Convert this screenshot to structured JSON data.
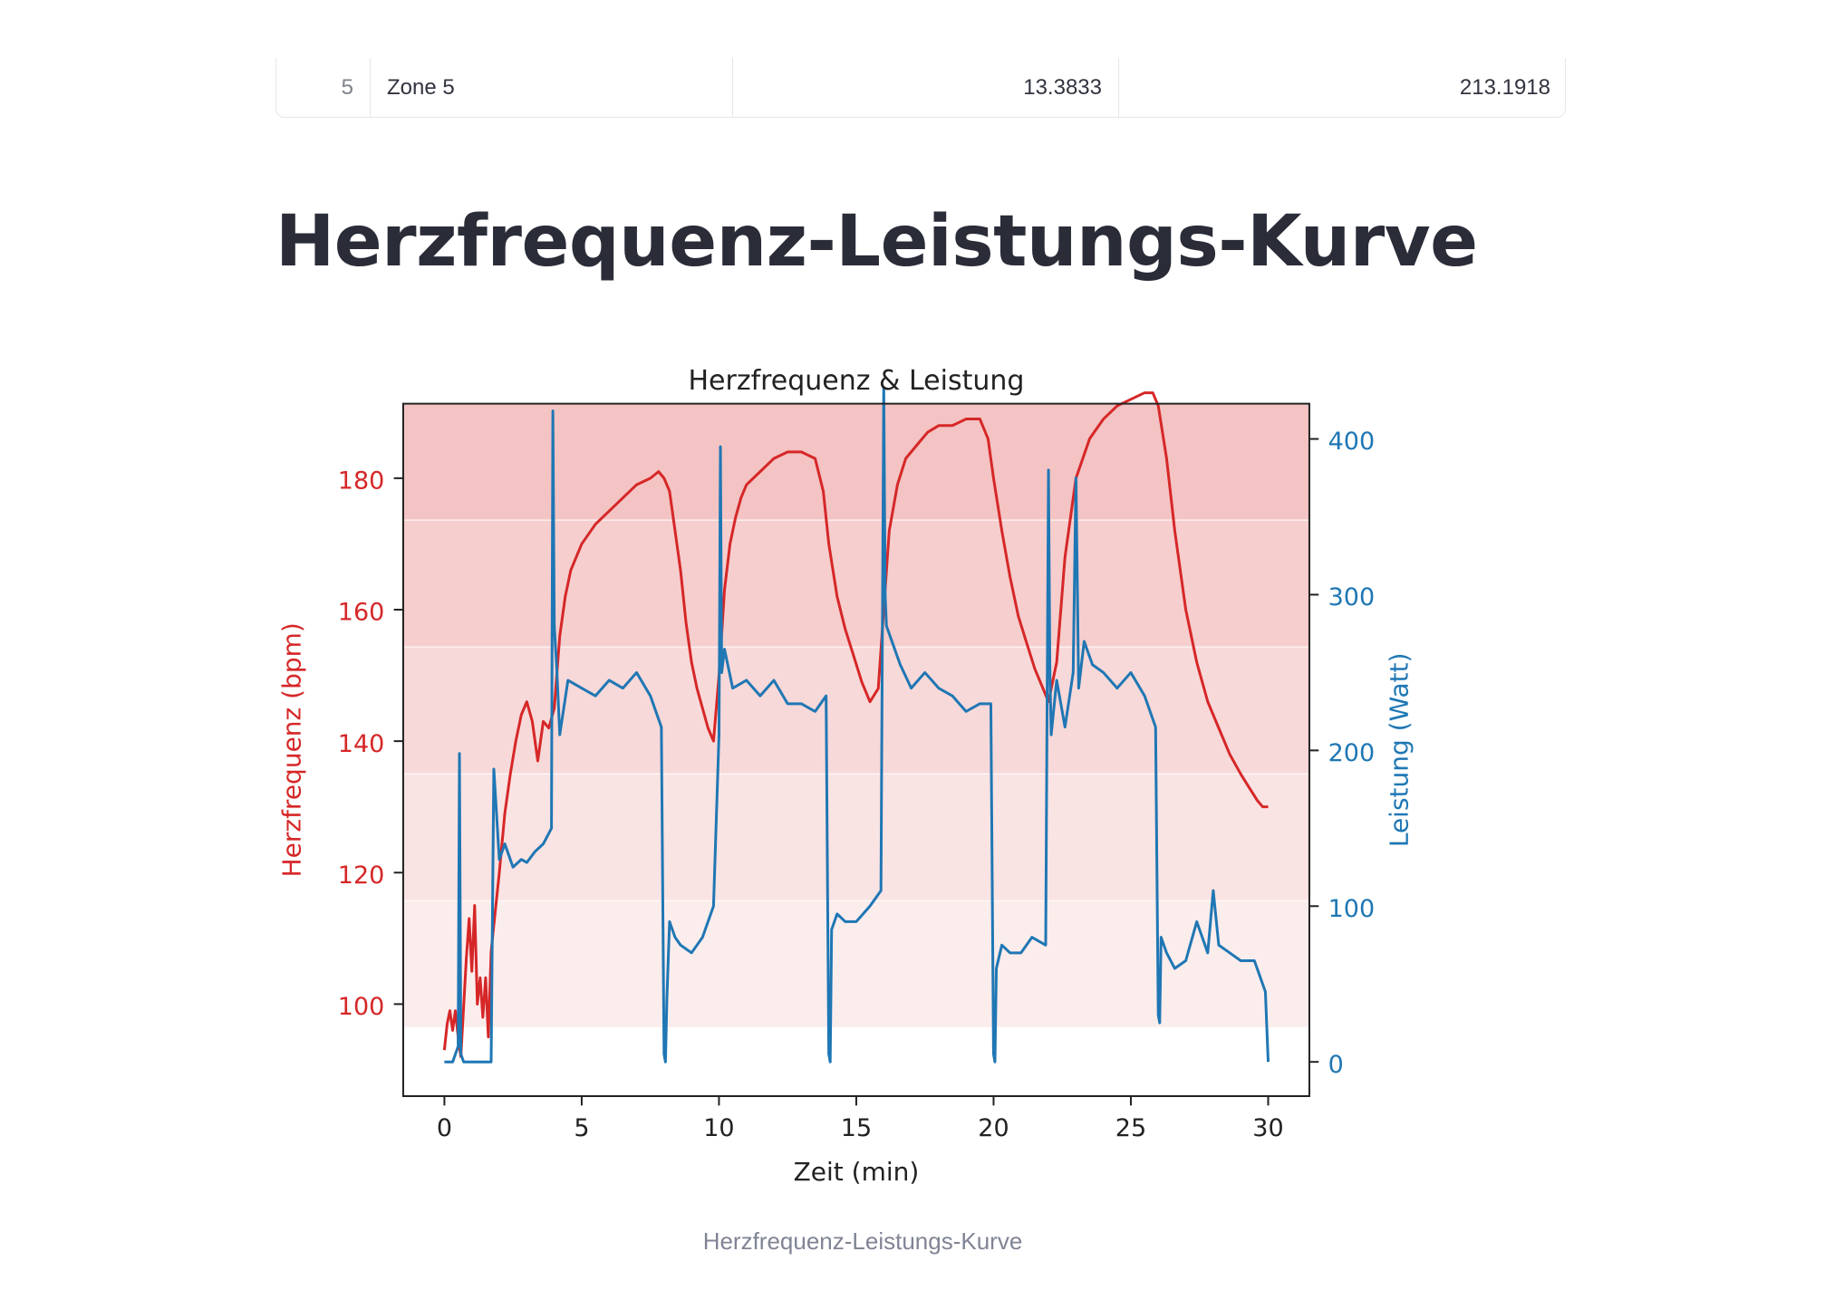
{
  "table": {
    "row": {
      "index": "5",
      "zone": "Zone 5",
      "value1": "13.3833",
      "value2": "213.1918"
    }
  },
  "page_title": "Herzfrequenz-Leistungs-Kurve",
  "caption": "Herzfrequenz-Leistungs-Kurve",
  "colors": {
    "heart_rate": "#d62728",
    "power": "#1f77b4",
    "zone_fill": "#e05050"
  },
  "chart_data": {
    "type": "line",
    "title": "Herzfrequenz & Leistung",
    "xlabel": "Zeit (min)",
    "ylabel_left": "Herzfrequenz (bpm)",
    "ylabel_right": "Leistung (Watt)",
    "xlim": [
      -1.5,
      31.5
    ],
    "ylim_left": [
      86,
      199
    ],
    "ylim_right": [
      -22,
      455
    ],
    "x_ticks": [
      "0",
      "5",
      "10",
      "15",
      "20",
      "25",
      "30"
    ],
    "y_left_ticks": [
      "100",
      "120",
      "140",
      "160",
      "180"
    ],
    "y_right_ticks": [
      "0",
      "100",
      "200",
      "300",
      "400"
    ],
    "zones": [
      {
        "from": 96.5,
        "to": 115.8,
        "opacity": 0.1
      },
      {
        "from": 115.8,
        "to": 135.1,
        "opacity": 0.16
      },
      {
        "from": 135.1,
        "to": 154.4,
        "opacity": 0.22
      },
      {
        "from": 154.4,
        "to": 173.7,
        "opacity": 0.28
      },
      {
        "from": 173.7,
        "to": 193.0,
        "opacity": 0.34
      }
    ],
    "series": [
      {
        "axis": "left",
        "x": [
          0,
          0.1,
          0.2,
          0.3,
          0.4,
          0.5,
          0.6,
          0.8,
          0.9,
          1.0,
          1.1,
          1.2,
          1.3,
          1.4,
          1.5,
          1.6,
          1.7,
          1.8,
          2.0,
          2.2,
          2.4,
          2.6,
          2.8,
          3.0,
          3.2,
          3.4,
          3.6,
          3.8,
          4.0,
          4.2,
          4.4,
          4.6,
          4.8,
          5.0,
          5.5,
          6.0,
          6.5,
          7.0,
          7.5,
          7.8,
          8.0,
          8.2,
          8.4,
          8.6,
          8.8,
          9.0,
          9.2,
          9.4,
          9.6,
          9.8,
          10.0,
          10.2,
          10.4,
          10.6,
          10.8,
          11.0,
          11.5,
          12.0,
          12.5,
          13.0,
          13.5,
          13.8,
          14.0,
          14.3,
          14.6,
          14.9,
          15.2,
          15.5,
          15.8,
          16.0,
          16.2,
          16.5,
          16.8,
          17.2,
          17.6,
          18.0,
          18.5,
          19.0,
          19.5,
          19.8,
          20.0,
          20.3,
          20.6,
          20.9,
          21.2,
          21.5,
          21.8,
          22.0,
          22.3,
          22.6,
          23.0,
          23.5,
          24.0,
          24.5,
          25.0,
          25.5,
          25.8,
          26.0,
          26.3,
          26.6,
          27.0,
          27.4,
          27.8,
          28.2,
          28.6,
          29.0,
          29.3,
          29.6,
          29.8,
          30.0
        ],
        "values": [
          93,
          97,
          99,
          96,
          99,
          95,
          92,
          107,
          113,
          105,
          115,
          100,
          104,
          98,
          104,
          95,
          108,
          112,
          120,
          129,
          135,
          140,
          144,
          146,
          143,
          137,
          143,
          142,
          145,
          156,
          162,
          166,
          168,
          170,
          173,
          175,
          177,
          179,
          180,
          181,
          180,
          178,
          172,
          166,
          158,
          152,
          148,
          145,
          142,
          140,
          150,
          163,
          170,
          174,
          177,
          179,
          181,
          183,
          184,
          184,
          183,
          178,
          170,
          162,
          157,
          153,
          149,
          146,
          148,
          160,
          172,
          179,
          183,
          185,
          187,
          188,
          188,
          189,
          189,
          186,
          180,
          172,
          165,
          159,
          155,
          151,
          148,
          146,
          152,
          168,
          180,
          186,
          189,
          191,
          192,
          193,
          193,
          191,
          183,
          172,
          160,
          152,
          146,
          142,
          138,
          135,
          133,
          131,
          130,
          130
        ]
      },
      {
        "axis": "right",
        "x": [
          0,
          0.3,
          0.5,
          0.55,
          0.6,
          0.7,
          1.0,
          1.5,
          1.7,
          1.8,
          2.0,
          2.2,
          2.5,
          2.8,
          3.0,
          3.3,
          3.6,
          3.9,
          3.95,
          4.0,
          4.1,
          4.2,
          4.5,
          5.0,
          5.5,
          6.0,
          6.5,
          7.0,
          7.5,
          7.9,
          8.0,
          8.05,
          8.1,
          8.2,
          8.4,
          8.6,
          9.0,
          9.4,
          9.8,
          10.0,
          10.05,
          10.1,
          10.2,
          10.5,
          11.0,
          11.5,
          12.0,
          12.5,
          13.0,
          13.5,
          13.9,
          14.0,
          14.05,
          14.1,
          14.3,
          14.6,
          15.0,
          15.5,
          15.9,
          16.0,
          16.05,
          16.1,
          16.3,
          16.6,
          17.0,
          17.5,
          18.0,
          18.5,
          19.0,
          19.5,
          19.9,
          20.0,
          20.05,
          20.1,
          20.3,
          20.6,
          21.0,
          21.4,
          21.9,
          22.0,
          22.05,
          22.1,
          22.3,
          22.6,
          22.9,
          23.0,
          23.1,
          23.3,
          23.6,
          24.0,
          24.5,
          25.0,
          25.5,
          25.9,
          26.0,
          26.05,
          26.1,
          26.3,
          26.6,
          27.0,
          27.4,
          27.8,
          28.0,
          28.2,
          28.6,
          29.0,
          29.5,
          29.9,
          30.0
        ],
        "values": [
          0,
          0,
          10,
          198,
          5,
          0,
          0,
          0,
          0,
          188,
          130,
          140,
          125,
          130,
          128,
          135,
          140,
          150,
          418,
          280,
          250,
          210,
          245,
          240,
          235,
          245,
          240,
          250,
          235,
          215,
          5,
          0,
          40,
          90,
          80,
          75,
          70,
          80,
          100,
          210,
          395,
          250,
          265,
          240,
          245,
          235,
          245,
          230,
          230,
          225,
          235,
          5,
          0,
          85,
          95,
          90,
          90,
          100,
          110,
          433,
          300,
          280,
          270,
          255,
          240,
          250,
          240,
          235,
          225,
          230,
          230,
          5,
          0,
          60,
          75,
          70,
          70,
          80,
          75,
          380,
          250,
          210,
          245,
          215,
          250,
          375,
          240,
          270,
          255,
          250,
          240,
          250,
          235,
          215,
          30,
          25,
          80,
          70,
          60,
          65,
          90,
          70,
          110,
          75,
          70,
          65,
          65,
          45,
          0
        ]
      }
    ]
  }
}
